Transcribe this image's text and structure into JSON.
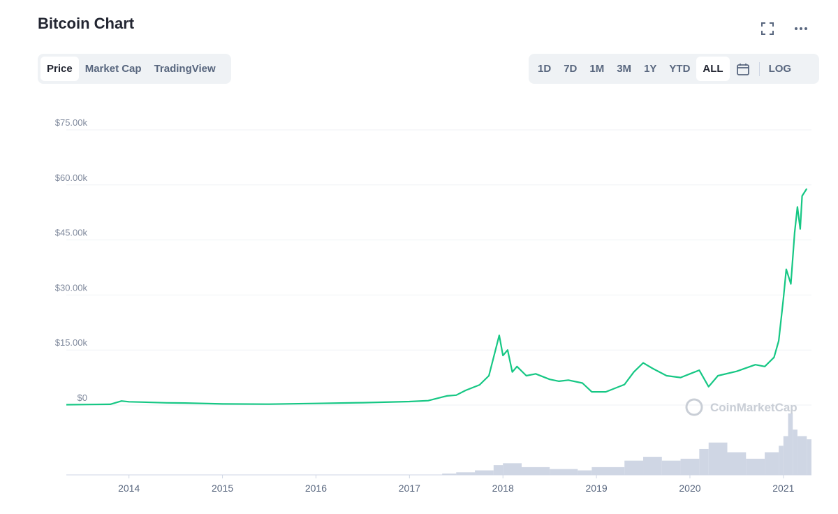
{
  "header": {
    "title": "Bitcoin Chart"
  },
  "tabs": [
    "Price",
    "Market Cap",
    "TradingView"
  ],
  "active_tab": "Price",
  "ranges": [
    "1D",
    "7D",
    "1M",
    "3M",
    "1Y",
    "YTD",
    "ALL"
  ],
  "active_range": "ALL",
  "log_label": "LOG",
  "icons": {
    "fullscreen": "fullscreen-icon",
    "more": "more-icon",
    "calendar": "calendar-icon"
  },
  "watermark": "CoinMarketCap",
  "colors": {
    "line": "#16c784",
    "volume": "#cfd6e4",
    "grid": "#eff2f5",
    "text_muted": "#808a9d"
  },
  "chart_data": {
    "type": "line",
    "title": "",
    "xlabel": "",
    "ylabel": "",
    "ylim": [
      0,
      75000
    ],
    "yticks": [
      "$0",
      "$15.00k",
      "$30.00k",
      "$45.00k",
      "$60.00k",
      "$75.00k"
    ],
    "xticks": [
      "2014",
      "2015",
      "2016",
      "2017",
      "2018",
      "2019",
      "2020",
      "2021"
    ],
    "series": [
      {
        "x": [
          2013.33,
          2013.8,
          2013.92,
          2014.0,
          2014.15,
          2014.4,
          2014.6,
          2015.0,
          2015.5,
          2016.0,
          2016.5,
          2017.0,
          2017.2,
          2017.4,
          2017.5,
          2017.6,
          2017.75,
          2017.85,
          2017.96,
          2018.0,
          2018.05,
          2018.1,
          2018.15,
          2018.25,
          2018.35,
          2018.5,
          2018.6,
          2018.7,
          2018.85,
          2018.95,
          2019.1,
          2019.3,
          2019.4,
          2019.5,
          2019.6,
          2019.75,
          2019.9,
          2020.0,
          2020.1,
          2020.2,
          2020.3,
          2020.5,
          2020.7,
          2020.8,
          2020.9,
          2020.95,
          2021.0,
          2021.03,
          2021.08,
          2021.12,
          2021.15,
          2021.18,
          2021.2,
          2021.25
        ],
        "y": [
          100,
          200,
          1100,
          900,
          800,
          600,
          550,
          300,
          250,
          430,
          650,
          950,
          1200,
          2500,
          2700,
          4000,
          5500,
          8000,
          19000,
          13500,
          15000,
          9000,
          10500,
          8000,
          8500,
          7000,
          6500,
          6800,
          6000,
          3600,
          3600,
          5600,
          9000,
          11500,
          10000,
          8000,
          7500,
          8500,
          9500,
          5000,
          8000,
          9200,
          11000,
          10500,
          13000,
          17500,
          29000,
          37000,
          33000,
          47000,
          54000,
          48000,
          57000,
          59000
        ]
      }
    ],
    "volume": {
      "x": [
        2017.35,
        2017.5,
        2017.7,
        2017.9,
        2018.0,
        2018.2,
        2018.5,
        2018.8,
        2018.95,
        2019.3,
        2019.5,
        2019.7,
        2019.9,
        2020.1,
        2020.2,
        2020.4,
        2020.6,
        2020.8,
        2020.95,
        2021.0,
        2021.05,
        2021.1,
        2021.15,
        2021.25
      ],
      "values": [
        2,
        4,
        7,
        15,
        18,
        12,
        9,
        7,
        12,
        22,
        28,
        22,
        25,
        40,
        50,
        35,
        25,
        35,
        45,
        60,
        95,
        70,
        60,
        55
      ]
    },
    "grid": true,
    "legend": "none"
  }
}
